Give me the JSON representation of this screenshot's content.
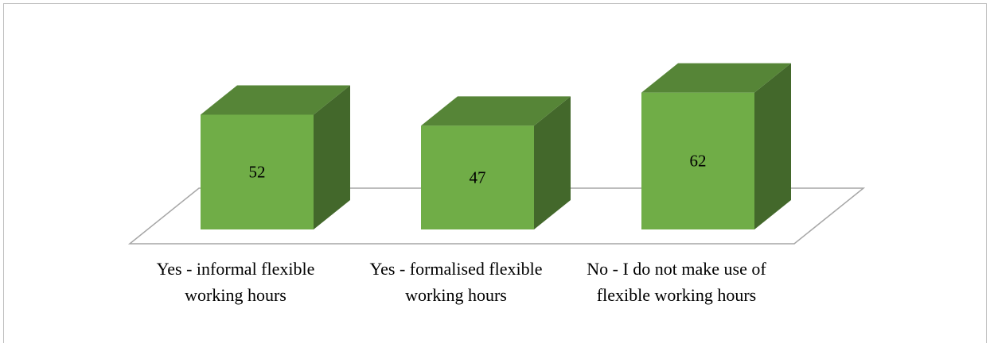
{
  "chart_data": {
    "type": "bar3d",
    "categories": [
      "Yes - informal flexible working hours",
      "Yes - formalised flexible working hours",
      "No - I do not make use of flexible working hours"
    ],
    "values": [
      52,
      47,
      62
    ],
    "color": "#70ad47"
  }
}
